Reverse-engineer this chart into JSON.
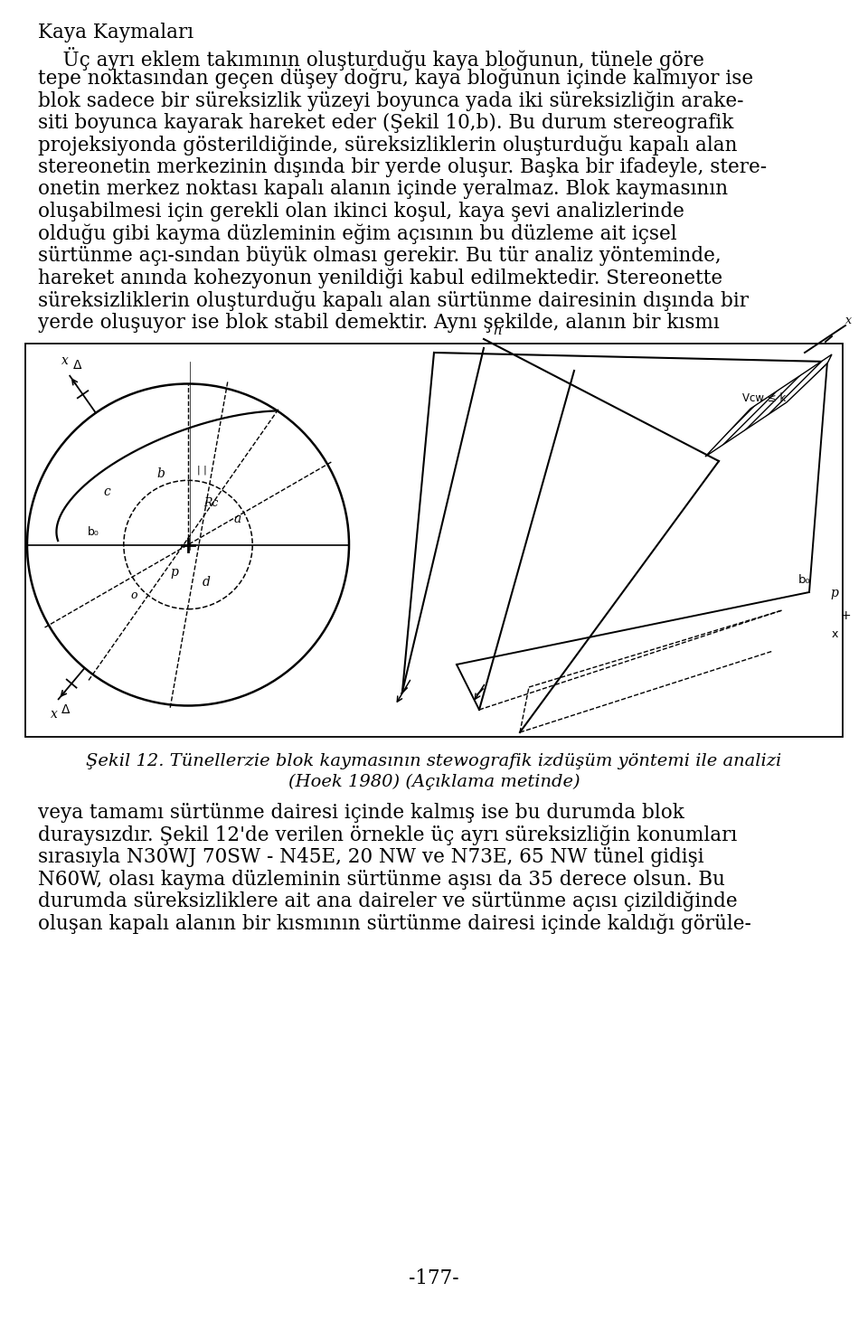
{
  "title_text": "Kaya Kaymaları",
  "para1_lines": [
    "    Üç ayrı eklem takımının oluşturduğu kaya bloğunun, tünele göre",
    "tepe noktasından geçen düşey doğru, kaya bloğunun içinde kalmıyor ise",
    "blok sadece bir süreksizlik yüzeyi boyunca yada iki süreksizliğin arake-",
    "siti boyunca kayarak hareket eder (Şekil 10,b). Bu durum stereografik",
    "projeksiyonda gösterildiğinde, süreksizliklerin oluşturduğu kapalı alan",
    "stereonetin merkezinin dışında bir yerde oluşur. Başka bir ifadeyle, stere-",
    "onetin merkez noktası kapalı alanın içinde yeralmaz. Blok kaymasının",
    "oluşabilmesi için gerekli olan ikinci koşul, kaya şevi analizlerinde",
    "olduğu gibi kayma düzleminin eğim açısının bu düzleme ait içsel",
    "sürtünme açı-sından büyük olması gerekir. Bu tür analiz yönteminde,",
    "hareket anında kohezyonun yenildiği kabul edilmektedir. Stereonette",
    "süreksizliklerin oluşturduğu kapalı alan sürtünme dairesinin dışında bir",
    "yerde oluşuyor ise blok stabil demektir. Aynı şekilde, alanın bir kısmı"
  ],
  "caption_line1": "Şekil 12. Tünellerzie blok kaymasının stewografik izdüşüm yöntemi ile analizi",
  "caption_line2": "(Hoek 1980) (Açıklama metinde)",
  "para2_lines": [
    "veya tamamı sürtünme dairesi içinde kalmış ise bu durumda blok",
    "duraysızdır. Şekil 12'de verilen örnekle üç ayrı süreksizliğin konumları",
    "sırasıyla N30WJ 70SW - N45E, 20 NW ve N73E, 65 NW tünel gidişi",
    "N60W, olası kayma düzleminin sürtünme aşısı da 35 derece olsun. Bu",
    "durumda süreksizliklere ait ana daireler ve sürtünme açısı çizildiğinde",
    "oluşan kapalı alanın bir kısmının sürtünme dairesi içinde kaldığı görüle-"
  ],
  "page_number": "-177-",
  "bg_color": "#ffffff",
  "text_color": "#000000"
}
